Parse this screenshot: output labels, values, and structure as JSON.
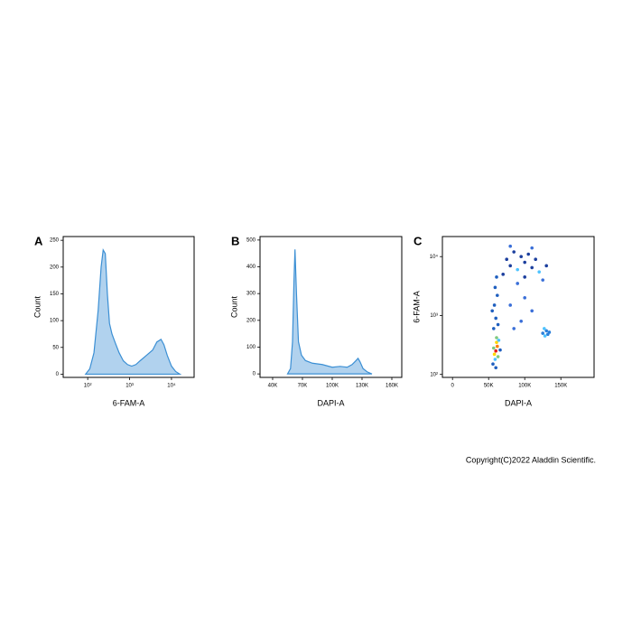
{
  "chart_data": [
    {
      "type": "area",
      "panel": "A",
      "xlabel": "6-FAM-A",
      "ylabel": "Count",
      "xscale": "log",
      "color": "#3b8fd4",
      "x": [
        89,
        112,
        141,
        178,
        209,
        234,
        263,
        295,
        331,
        380,
        447,
        562,
        708,
        891,
        1122,
        1413,
        1778,
        2512,
        3548,
        4467,
        5623,
        6607,
        7943,
        10000,
        12589,
        15849
      ],
      "values": [
        0,
        10,
        40,
        120,
        200,
        232,
        225,
        150,
        95,
        75,
        60,
        40,
        25,
        18,
        15,
        18,
        25,
        35,
        45,
        60,
        65,
        55,
        35,
        15,
        5,
        0
      ],
      "xlim": [
        26,
        34700
      ],
      "ylim": [
        -6,
        257
      ],
      "xticks": [
        {
          "value": 100,
          "label": "10²"
        },
        {
          "value": 1000,
          "label": "10³"
        },
        {
          "value": 10000,
          "label": "10⁴"
        }
      ],
      "yticks": [
        0,
        50,
        100,
        150,
        200,
        250
      ]
    },
    {
      "type": "area",
      "panel": "B",
      "xlabel": "DAPI-A",
      "ylabel": "Count",
      "color": "#3b8fd4",
      "x": [
        55000,
        58000,
        60000,
        61500,
        62500,
        64000,
        66000,
        69000,
        73000,
        80000,
        90000,
        100000,
        108000,
        115000,
        120000,
        124000,
        126000,
        128000,
        131000,
        135000,
        140000
      ],
      "values": [
        0,
        20,
        120,
        350,
        465,
        300,
        120,
        70,
        50,
        40,
        35,
        25,
        28,
        25,
        35,
        50,
        58,
        45,
        20,
        8,
        0
      ],
      "xlim": [
        27300,
        170000
      ],
      "ylim": [
        -13,
        513
      ],
      "xticks": [
        {
          "value": 40000,
          "label": "40K"
        },
        {
          "value": 70000,
          "label": "70K"
        },
        {
          "value": 100000,
          "label": "100K"
        },
        {
          "value": 130000,
          "label": "130K"
        },
        {
          "value": 160000,
          "label": "160K"
        }
      ],
      "yticks": [
        0,
        100,
        200,
        300,
        400,
        500
      ]
    },
    {
      "type": "scatter",
      "panel": "C",
      "xlabel": "DAPI-A",
      "ylabel": "6-FAM-A",
      "yscale": "log",
      "x": [
        60000,
        62000,
        58000,
        61000,
        63000,
        57000,
        64000,
        59000,
        61000,
        56000,
        66000,
        60000,
        57000,
        60000,
        58000,
        62000,
        59000,
        55000,
        63000,
        61000,
        70000,
        80000,
        90000,
        100000,
        110000,
        120000,
        85000,
        95000,
        105000,
        75000,
        115000,
        125000,
        130000,
        90000,
        100000,
        80000,
        110000,
        80000,
        95000,
        110000,
        100000,
        85000,
        125000,
        128000,
        130000,
        132000,
        127000,
        134000
      ],
      "y": [
        250,
        300,
        220,
        350,
        200,
        280,
        380,
        180,
        420,
        150,
        260,
        130,
        600,
        900,
        1500,
        2200,
        3000,
        1200,
        700,
        4500,
        5000,
        7000,
        6000,
        8000,
        6500,
        5500,
        12000,
        10000,
        11000,
        9000,
        9000,
        4000,
        7000,
        3500,
        4500,
        15000,
        14000,
        1500,
        800,
        1200,
        2000,
        600,
        500,
        450,
        550,
        480,
        600,
        520
      ],
      "colors": [
        "#e31a1c",
        "#ff7f00",
        "#ffd700",
        "#ffd700",
        "#7fc97f",
        "#7fc97f",
        "#4dc3ff",
        "#4dc3ff",
        "#7fc97f",
        "#1f5fbf",
        "#1f5fbf",
        "#1f5fbf",
        "#1f5fbf",
        "#1f5fbf",
        "#1f5fbf",
        "#1f5fbf",
        "#1f5fbf",
        "#1f5fbf",
        "#1f5fbf",
        "#1f5fbf",
        "#1c3f9e",
        "#1c3f9e",
        "#4dc3ff",
        "#1c3f9e",
        "#1c3f9e",
        "#4dc3ff",
        "#1c3f9e",
        "#1c3f9e",
        "#1c3f9e",
        "#1c3f9e",
        "#1c3f9e",
        "#3a6fd8",
        "#1c3f9e",
        "#3a6fd8",
        "#1c3f9e",
        "#3a6fd8",
        "#3a6fd8",
        "#3a6fd8",
        "#3a6fd8",
        "#3a6fd8",
        "#3a6fd8",
        "#3a6fd8",
        "#2b7fd9",
        "#4dc3ff",
        "#2b7fd9",
        "#2b7fd9",
        "#4dc3ff",
        "#2b7fd9"
      ],
      "xlim": [
        -14000,
        196000
      ],
      "ylim": [
        89,
        21900
      ],
      "xticks": [
        0,
        {
          "value": 50000,
          "label": "50K"
        },
        {
          "value": 100000,
          "label": "100K"
        },
        {
          "value": 150000,
          "label": "150K"
        }
      ],
      "yticks": [
        {
          "value": 100,
          "label": "10²"
        },
        {
          "value": 1000,
          "label": "10³"
        },
        {
          "value": 10000,
          "label": "10⁴"
        }
      ]
    }
  ],
  "copyright": "Copyright(C)2022 Aladdin Scientific."
}
